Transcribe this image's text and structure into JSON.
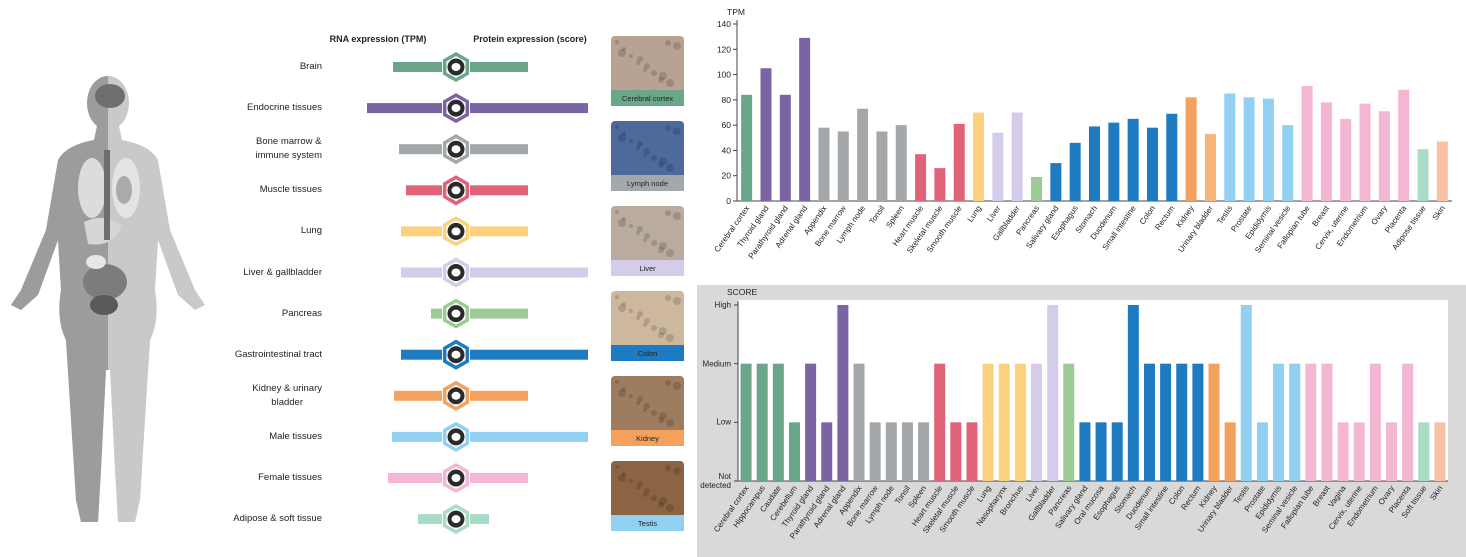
{
  "expression_panel": {
    "rna_header": "RNA expression (TPM)",
    "protein_header": "Protein expression (score)",
    "rows": [
      {
        "label": "Brain",
        "color": "#6aa68a",
        "rna": 49,
        "protein": 58
      },
      {
        "label": "Endocrine tissues",
        "color": "#7b64a3",
        "rna": 75,
        "protein": 118
      },
      {
        "label": "Bone marrow &\nimmune system",
        "color": "#a5a8aa",
        "rna": 43,
        "protein": 58
      },
      {
        "label": "Muscle tissues",
        "color": "#e06377",
        "rna": 36,
        "protein": 58
      },
      {
        "label": "Lung",
        "color": "#fdd07e",
        "rna": 41,
        "protein": 58
      },
      {
        "label": "Liver & gallbladder",
        "color": "#d4cce8",
        "rna": 41,
        "protein": 118
      },
      {
        "label": "Pancreas",
        "color": "#9ccb96",
        "rna": 11,
        "protein": 58
      },
      {
        "label": "Gastrointestinal tract",
        "color": "#1f7bc1",
        "rna": 41,
        "protein": 118
      },
      {
        "label": "Kidney & urinary\nbladder",
        "color": "#f5a15e",
        "rna": 48,
        "protein": 58
      },
      {
        "label": "Male tissues",
        "color": "#92d0f2",
        "rna": 50,
        "protein": 118
      },
      {
        "label": "Female tissues",
        "color": "#f4b7d3",
        "rna": 54,
        "protein": 58
      },
      {
        "label": "Adipose & soft tissue",
        "color": "#a9dcc7",
        "rna": 24,
        "protein": 19
      }
    ]
  },
  "images": [
    {
      "caption": "Cerebral cortex",
      "color": "#6aa68a",
      "tone": "#b8a293"
    },
    {
      "caption": "Lymph node",
      "color": "#a5a8aa",
      "tone": "#4d6a9c"
    },
    {
      "caption": "Liver",
      "color": "#d4cce8",
      "tone": "#b9ab9d"
    },
    {
      "caption": "Colon",
      "color": "#1f7bc1",
      "tone": "#cdb89e"
    },
    {
      "caption": "Kidney",
      "color": "#f5a15e",
      "tone": "#9d7c5f"
    },
    {
      "caption": "Testis",
      "color": "#92d0f2",
      "tone": "#8c6444"
    }
  ],
  "chart_data": [
    {
      "type": "bar",
      "ylabel": "TPM",
      "categories": [
        "Cerebral cortex",
        "Thyroid gland",
        "Parathyroid gland",
        "Adrenal gland",
        "Appendix",
        "Bone marrow",
        "Lymph node",
        "Tonsil",
        "Spleen",
        "Heart muscle",
        "Skeletal muscle",
        "Smooth muscle",
        "Lung",
        "Liver",
        "Gallbladder",
        "Pancreas",
        "Salivary gland",
        "Esophagus",
        "Stomach",
        "Duodenum",
        "Small intestine",
        "Colon",
        "Rectum",
        "Kidney",
        "Urinary bladder",
        "Testis",
        "Prostate",
        "Epididymis",
        "Seminal vesicle",
        "Fallopian tube",
        "Breast",
        "Cervix, uterine",
        "Endometrium",
        "Ovary",
        "Placenta",
        "Adipose tissue",
        "Skin"
      ],
      "values": [
        84,
        105,
        84,
        129,
        58,
        55,
        73,
        55,
        60,
        37,
        26,
        61,
        70,
        54,
        70,
        19,
        30,
        46,
        59,
        62,
        65,
        58,
        69,
        82,
        53,
        85,
        82,
        81,
        60,
        91,
        78,
        65,
        77,
        71,
        88,
        41,
        47
      ],
      "colors": [
        "#6aa68a",
        "#7b64a3",
        "#7b64a3",
        "#7b64a3",
        "#a5a8aa",
        "#a5a8aa",
        "#a5a8aa",
        "#a5a8aa",
        "#a5a8aa",
        "#e06377",
        "#e06377",
        "#e06377",
        "#fdd07e",
        "#d4cce8",
        "#d4cce8",
        "#9ccb96",
        "#1f7bc1",
        "#1f7bc1",
        "#1f7bc1",
        "#1f7bc1",
        "#1f7bc1",
        "#1f7bc1",
        "#1f7bc1",
        "#f5a15e",
        "#f8b57a",
        "#92d0f2",
        "#92d0f2",
        "#92d0f2",
        "#92d0f2",
        "#f4b7d3",
        "#f4b7d3",
        "#f4b7d3",
        "#f4b7d3",
        "#f4b7d3",
        "#f4b7d3",
        "#a9dcc7",
        "#f8c1a3"
      ],
      "ylim": [
        0,
        140
      ],
      "yticks": [
        0,
        20,
        40,
        60,
        80,
        100,
        120,
        140
      ]
    },
    {
      "type": "bar",
      "ylabel": "SCORE",
      "categories": [
        "Cerebral cortex",
        "Hippocampus",
        "Caudate",
        "Cerebellum",
        "Thyroid gland",
        "Parathyroid gland",
        "Adrenal gland",
        "Appendix",
        "Bone marrow",
        "Lymph node",
        "Tonsil",
        "Spleen",
        "Heart muscle",
        "Skeletal muscle",
        "Smooth muscle",
        "Lung",
        "Nasopharynx",
        "Bronchus",
        "Liver",
        "Gallbladder",
        "Pancreas",
        "Salivary gland",
        "Oral mucosa",
        "Esophagus",
        "Stomach",
        "Duodenum",
        "Small intestine",
        "Colon",
        "Rectum",
        "Kidney",
        "Urinary bladder",
        "Testis",
        "Prostate",
        "Epididymis",
        "Seminal vesicle",
        "Fallopian tube",
        "Breast",
        "Vagina",
        "Cervix, uterine",
        "Endometrium",
        "Ovary",
        "Placenta",
        "Soft tissue",
        "Skin"
      ],
      "values": [
        2,
        2,
        2,
        1,
        2,
        1,
        3,
        2,
        1,
        1,
        1,
        1,
        2,
        1,
        1,
        2,
        2,
        2,
        2,
        3,
        2,
        1,
        1,
        1,
        3,
        2,
        2,
        2,
        2,
        2,
        1,
        3,
        1,
        2,
        2,
        2,
        2,
        1,
        1,
        2,
        1,
        2,
        1,
        1
      ],
      "colors": [
        "#6aa68a",
        "#6aa68a",
        "#6aa68a",
        "#6aa68a",
        "#7b64a3",
        "#7b64a3",
        "#7b64a3",
        "#a5a8aa",
        "#a5a8aa",
        "#a5a8aa",
        "#a5a8aa",
        "#a5a8aa",
        "#e06377",
        "#e06377",
        "#e06377",
        "#fdd07e",
        "#fdd07e",
        "#fdd07e",
        "#d4cce8",
        "#d4cce8",
        "#9ccb96",
        "#1f7bc1",
        "#1f7bc1",
        "#1f7bc1",
        "#1f7bc1",
        "#1f7bc1",
        "#1f7bc1",
        "#1f7bc1",
        "#1f7bc1",
        "#f5a15e",
        "#f5a15e",
        "#92d0f2",
        "#92d0f2",
        "#92d0f2",
        "#92d0f2",
        "#f4b7d3",
        "#f4b7d3",
        "#f4b7d3",
        "#f4b7d3",
        "#f4b7d3",
        "#f4b7d3",
        "#f4b7d3",
        "#a9dcc7",
        "#f8c1a3"
      ],
      "ylim": [
        0,
        3
      ],
      "yticks": [
        {
          "value": 0,
          "label": "Not detected"
        },
        {
          "value": 1,
          "label": "Low"
        },
        {
          "value": 2,
          "label": "Medium"
        },
        {
          "value": 3,
          "label": "High"
        }
      ]
    }
  ]
}
